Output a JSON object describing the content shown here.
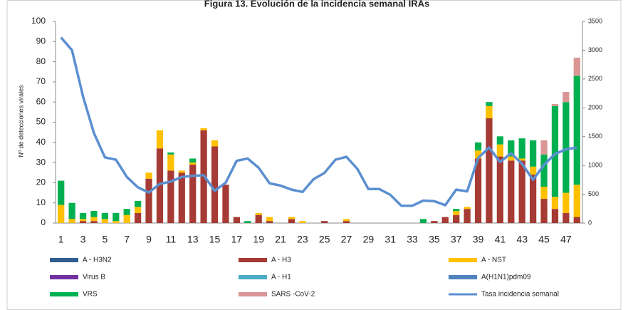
{
  "chart_data": {
    "type": "bar",
    "title": "Figura 13. Evolución de la incidencia semanal IRAs",
    "y_label": "Nº de detecciones virales",
    "categories": [
      "1",
      null,
      "3",
      null,
      "5",
      null,
      "7",
      null,
      "9",
      null,
      "11",
      null,
      "13",
      null,
      "15",
      null,
      "17",
      null,
      "19",
      null,
      "21",
      null,
      "23",
      null,
      "25",
      null,
      "27",
      null,
      "29",
      null,
      "31",
      null,
      "33",
      null,
      "35",
      null,
      "37",
      null,
      "39",
      null,
      "41",
      null,
      "43",
      null,
      "45",
      null,
      "47",
      null
    ],
    "series": [
      {
        "name": "A - H3N2",
        "color": "#2f5f8f",
        "values": [
          0,
          0,
          0,
          0,
          0,
          0,
          0,
          0,
          0,
          0,
          0,
          0,
          0,
          0,
          0,
          0,
          0,
          0,
          0,
          0,
          0,
          0,
          0,
          0,
          0,
          0,
          0,
          0,
          0,
          0,
          0,
          0,
          0,
          0,
          0,
          0,
          0,
          0,
          0,
          0,
          0,
          0,
          0,
          0,
          0,
          0,
          0,
          0
        ]
      },
      {
        "name": "A - H3",
        "color": "#a63a34",
        "values": [
          0,
          0,
          1,
          1,
          0,
          0,
          0,
          5,
          22,
          37,
          26,
          25,
          29,
          46,
          38,
          19,
          3,
          0,
          4,
          1,
          0,
          2,
          0,
          0,
          1,
          0,
          1,
          0,
          0,
          0,
          0,
          0,
          0,
          0,
          1,
          3,
          4,
          7,
          32,
          52,
          33,
          31,
          31,
          24,
          12,
          7,
          5,
          3
        ]
      },
      {
        "name": "A - NST",
        "color": "#ffc000",
        "values": [
          9,
          2,
          1,
          2,
          2,
          1,
          4,
          3,
          3,
          9,
          8,
          1,
          1,
          1,
          3,
          0,
          0,
          0,
          1,
          2,
          0,
          1,
          1,
          0,
          0,
          0,
          1,
          0,
          0,
          0,
          0,
          0,
          0,
          0,
          0,
          0,
          2,
          1,
          4,
          6,
          6,
          2,
          1,
          4,
          6,
          6,
          10,
          16
        ]
      },
      {
        "name": "Virus B",
        "color": "#7030a0",
        "values": [
          0,
          0,
          0,
          0,
          0,
          0,
          0,
          0,
          0,
          0,
          0,
          0,
          0,
          0,
          0,
          0,
          0,
          0,
          0,
          0,
          0,
          0,
          0,
          0,
          0,
          0,
          0,
          0,
          0,
          0,
          0,
          0,
          0,
          0,
          0,
          0,
          0,
          0,
          0,
          0,
          0,
          0,
          0,
          0,
          0,
          0,
          0,
          0
        ]
      },
      {
        "name": "A - H1",
        "color": "#4bacc6",
        "values": [
          0,
          0,
          0,
          0,
          0,
          0,
          0,
          0,
          0,
          0,
          0,
          0,
          0,
          0,
          0,
          0,
          0,
          0,
          0,
          0,
          0,
          0,
          0,
          0,
          0,
          0,
          0,
          0,
          0,
          0,
          0,
          0,
          0,
          0,
          0,
          0,
          0,
          0,
          0,
          0,
          0,
          0,
          0,
          0,
          0,
          0,
          0,
          0
        ]
      },
      {
        "name": "A(H1N1)pdm09",
        "color": "#4f81bd",
        "values": [
          0,
          0,
          0,
          0,
          0,
          0,
          0,
          0,
          0,
          0,
          0,
          0,
          0,
          0,
          0,
          0,
          0,
          0,
          0,
          0,
          0,
          0,
          0,
          0,
          0,
          0,
          0,
          0,
          0,
          0,
          0,
          0,
          0,
          0,
          0,
          0,
          0,
          0,
          0,
          0,
          0,
          0,
          0,
          0,
          0,
          0,
          0,
          0
        ]
      },
      {
        "name": "VRS",
        "color": "#00b050",
        "values": [
          12,
          8,
          3,
          3,
          3,
          4,
          3,
          3,
          0,
          0,
          1,
          0,
          2,
          0,
          0,
          0,
          0,
          1,
          0,
          0,
          0,
          0,
          0,
          0,
          0,
          0,
          0,
          0,
          0,
          0,
          0,
          0,
          0,
          2,
          0,
          0,
          1,
          0,
          4,
          2,
          4,
          8,
          10,
          13,
          16,
          45,
          45,
          54
        ]
      },
      {
        "name": "SARS -CoV-2",
        "color": "#d99694",
        "values": [
          0,
          0,
          0,
          0,
          0,
          0,
          0,
          0,
          0,
          0,
          0,
          0,
          0,
          0,
          0,
          0,
          0,
          0,
          0,
          0,
          0,
          0,
          0,
          0,
          0,
          0,
          0,
          0,
          0,
          0,
          0,
          0,
          0,
          0,
          0,
          0,
          0,
          0,
          0,
          0,
          0,
          0,
          0,
          0,
          7,
          1,
          5,
          9
        ]
      },
      {
        "name": "Tasa incidencia semanal",
        "color": "#5b8fd0",
        "axis": "y2",
        "values": [
          3220,
          3000,
          2200,
          1560,
          1140,
          1100,
          800,
          620,
          530,
          680,
          720,
          800,
          820,
          830,
          560,
          700,
          1080,
          1120,
          960,
          690,
          650,
          580,
          540,
          760,
          870,
          1100,
          1150,
          940,
          590,
          590,
          490,
          300,
          300,
          390,
          380,
          310,
          580,
          550,
          1130,
          1310,
          1060,
          1210,
          1030,
          750,
          1010,
          1200,
          1280,
          1310
        ]
      }
    ],
    "ylim": [
      0,
      100
    ],
    "yticks": [
      0,
      10,
      20,
      30,
      40,
      50,
      60,
      70,
      80,
      90,
      100
    ],
    "y2lim": [
      0,
      3500
    ],
    "y2ticks": [
      0,
      500,
      1000,
      1500,
      2000,
      2500,
      3000,
      3500
    ],
    "grid": false
  }
}
